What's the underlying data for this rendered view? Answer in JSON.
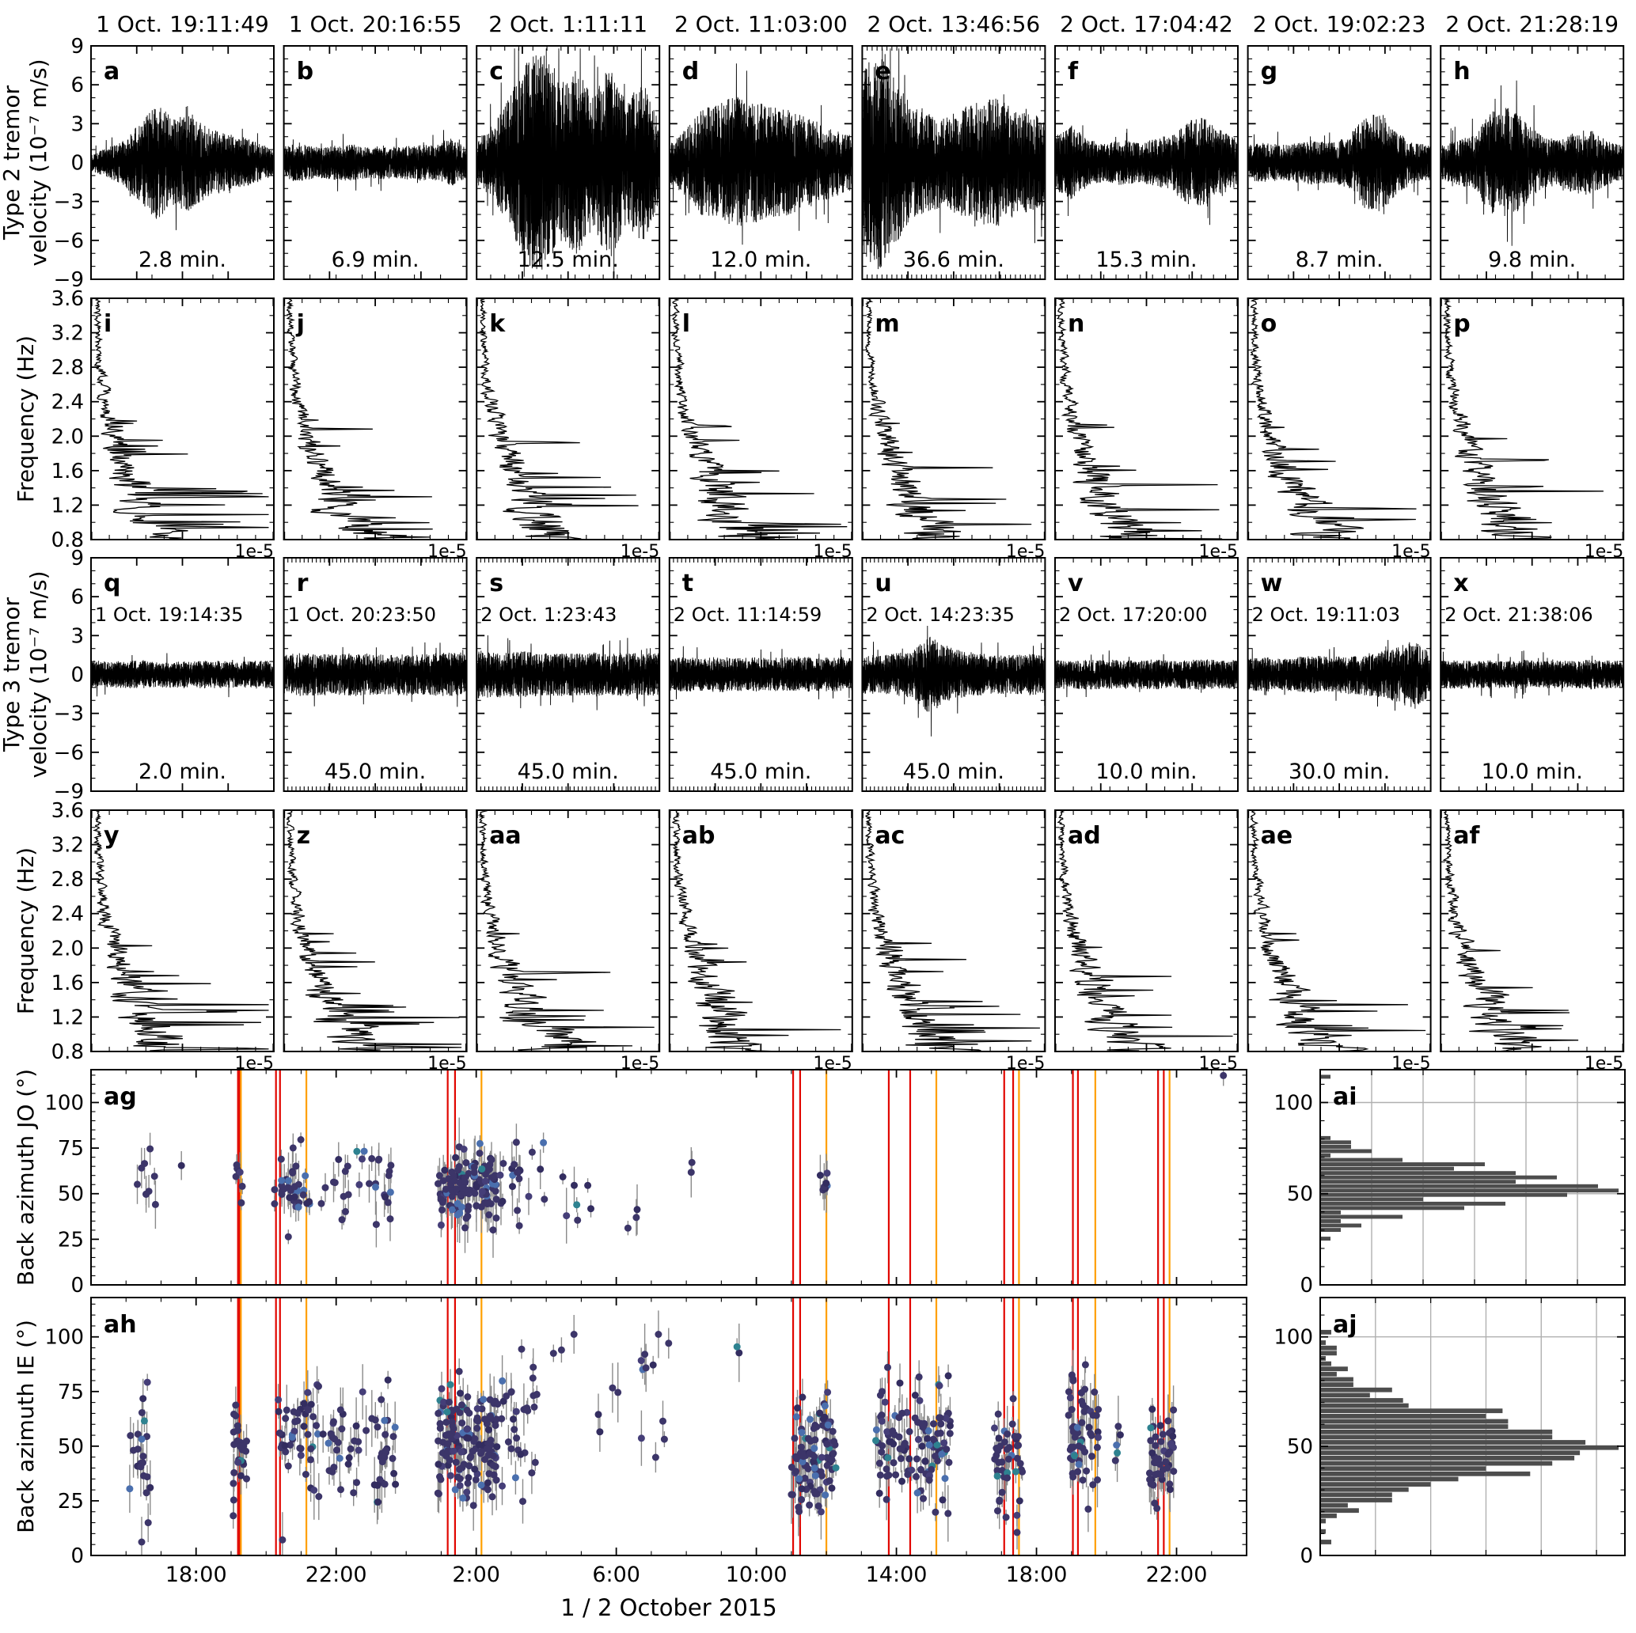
{
  "chart_data": {
    "type": "multi-panel seismic tremor figure (waveforms, spectra, back-azimuth scatter, histograms)",
    "column_titles": [
      "1 Oct. 19:11:49",
      "1 Oct. 20:16:55",
      "2 Oct. 1:11:11",
      "2 Oct. 11:03:00",
      "2 Oct. 13:46:56",
      "2 Oct. 17:04:42",
      "2 Oct. 19:02:23",
      "2 Oct. 21:28:19"
    ],
    "type2_waveforms": {
      "ylabel_lines": [
        "Type 2 tremor",
        "velocity (10⁻⁷ m/s)"
      ],
      "ylim": [
        -9,
        9
      ],
      "yticks": [
        -9,
        -6,
        -3,
        0,
        3,
        6,
        9
      ],
      "panels": [
        {
          "label": "a",
          "duration_label": "2.8 min.",
          "duration_min": 2.8,
          "peak_amplitude": 4.5,
          "seed": 11,
          "envelope": [
            0.15,
            0.25,
            0.4,
            0.7,
            1,
            0.75,
            0.85,
            0.6,
            0.5,
            0.45,
            0.35,
            0.22
          ]
        },
        {
          "label": "b",
          "duration_label": "6.9 min.",
          "duration_min": 6.9,
          "peak_amplitude": 2.4,
          "seed": 12,
          "envelope": [
            0.55,
            0.6,
            0.5,
            0.55,
            0.6,
            0.5,
            0.55,
            0.5,
            0.6,
            0.55,
            0.78,
            0.5
          ]
        },
        {
          "label": "c",
          "duration_label": "12.5 min.",
          "duration_min": 12.5,
          "peak_amplitude": 8.5,
          "seed": 13,
          "envelope": [
            0.2,
            0.35,
            0.6,
            0.95,
            1,
            0.7,
            0.85,
            0.6,
            0.9,
            0.55,
            0.75,
            0.35
          ]
        },
        {
          "label": "d",
          "duration_label": "12.0 min.",
          "duration_min": 12.0,
          "peak_amplitude": 5.2,
          "seed": 14,
          "envelope": [
            0.3,
            0.5,
            0.8,
            0.9,
            1,
            0.9,
            0.85,
            0.8,
            0.7,
            0.6,
            0.5,
            0.4
          ]
        },
        {
          "label": "e",
          "duration_label": "36.6 min.",
          "duration_min": 36.6,
          "peak_amplitude": 8.5,
          "seed": 15,
          "envelope": [
            0.85,
            1,
            0.75,
            0.5,
            0.45,
            0.4,
            0.5,
            0.55,
            0.6,
            0.5,
            0.45,
            0.4
          ]
        },
        {
          "label": "f",
          "duration_label": "15.3 min.",
          "duration_min": 15.3,
          "peak_amplitude": 3.6,
          "seed": 16,
          "envelope": [
            0.6,
            0.8,
            0.5,
            0.4,
            0.5,
            0.42,
            0.5,
            0.6,
            0.9,
            1,
            0.7,
            0.5
          ]
        },
        {
          "label": "g",
          "duration_label": "8.7 min.",
          "duration_min": 8.7,
          "peak_amplitude": 3.9,
          "seed": 17,
          "envelope": [
            0.35,
            0.4,
            0.35,
            0.4,
            0.45,
            0.4,
            0.5,
            0.9,
            1,
            0.6,
            0.4,
            0.35
          ]
        },
        {
          "label": "h",
          "duration_label": "9.8 min.",
          "duration_min": 9.8,
          "peak_amplitude": 4.3,
          "seed": 18,
          "envelope": [
            0.3,
            0.4,
            0.5,
            0.9,
            1,
            0.8,
            0.5,
            0.4,
            0.55,
            0.6,
            0.4,
            0.3
          ]
        }
      ]
    },
    "type2_spectra": {
      "ylabel": "Frequency (Hz)",
      "ylim": [
        0.8,
        3.6
      ],
      "yticks": [
        0.8,
        1.2,
        1.6,
        2.0,
        2.4,
        2.8,
        3.2,
        3.6
      ],
      "x_offset_label": "1e-5",
      "panels": [
        {
          "label": "i",
          "seed": 21
        },
        {
          "label": "j",
          "seed": 22
        },
        {
          "label": "k",
          "seed": 23
        },
        {
          "label": "l",
          "seed": 24
        },
        {
          "label": "m",
          "seed": 25
        },
        {
          "label": "n",
          "seed": 26
        },
        {
          "label": "o",
          "seed": 27
        },
        {
          "label": "p",
          "seed": 28
        }
      ]
    },
    "type3_waveforms": {
      "ylabel_lines": [
        "Type 3 tremor",
        "velocity (10⁻⁷ m/s)"
      ],
      "ylim": [
        -9,
        9
      ],
      "yticks": [
        -9,
        -6,
        -3,
        0,
        3,
        6,
        9
      ],
      "panels": [
        {
          "label": "q",
          "timestamp": "1 Oct. 19:14:35",
          "duration_label": "2.0 min.",
          "duration_min": 2.0,
          "peak_amplitude": 1.1,
          "seed": 31,
          "envelope": [
            1,
            0.9,
            0.95,
            1,
            0.9,
            0.95,
            0.9,
            1,
            0.95,
            0.9,
            1,
            0.95
          ]
        },
        {
          "label": "r",
          "timestamp": "1 Oct. 20:23:50",
          "duration_label": "45.0 min.",
          "duration_min": 45.0,
          "peak_amplitude": 1.7,
          "seed": 32,
          "envelope": [
            0.9,
            1,
            0.95,
            0.9,
            1,
            0.95,
            0.9,
            1,
            0.9,
            0.95,
            1,
            0.9
          ]
        },
        {
          "label": "s",
          "timestamp": "2 Oct. 1:23:43",
          "duration_label": "45.0 min.",
          "duration_min": 45.0,
          "peak_amplitude": 1.9,
          "seed": 33,
          "envelope": [
            1,
            0.95,
            0.9,
            0.95,
            0.85,
            0.9,
            0.85,
            0.9,
            0.85,
            0.9,
            0.85,
            0.9
          ]
        },
        {
          "label": "t",
          "timestamp": "2 Oct. 11:14:59",
          "duration_label": "45.0 min.",
          "duration_min": 45.0,
          "peak_amplitude": 1.4,
          "seed": 34,
          "envelope": [
            0.9,
            0.95,
            0.9,
            1,
            0.9,
            0.95,
            0.9,
            0.95,
            1,
            0.9,
            0.95,
            0.9
          ]
        },
        {
          "label": "u",
          "timestamp": "2 Oct. 14:23:35",
          "duration_label": "45.0 min.",
          "duration_min": 45.0,
          "peak_amplitude": 3.0,
          "seed": 35,
          "envelope": [
            0.5,
            0.5,
            0.55,
            0.6,
            1,
            0.75,
            0.6,
            0.55,
            0.5,
            0.5,
            0.55,
            0.5
          ]
        },
        {
          "label": "v",
          "timestamp": "2 Oct. 17:20:00",
          "duration_label": "10.0 min.",
          "duration_min": 10.0,
          "peak_amplitude": 1.2,
          "seed": 36,
          "envelope": [
            0.95,
            0.9,
            1,
            0.9,
            0.95,
            0.9,
            1,
            0.9,
            0.95,
            1,
            0.9,
            0.95
          ]
        },
        {
          "label": "w",
          "timestamp": "2 Oct. 19:11:03",
          "duration_label": "30.0 min.",
          "duration_min": 30.0,
          "peak_amplitude": 2.7,
          "seed": 37,
          "envelope": [
            0.45,
            0.5,
            0.45,
            0.5,
            0.55,
            0.5,
            0.55,
            0.6,
            0.65,
            0.8,
            1,
            0.6
          ]
        },
        {
          "label": "x",
          "timestamp": "2 Oct. 21:38:06",
          "duration_label": "10.0 min.",
          "duration_min": 10.0,
          "peak_amplitude": 1.15,
          "seed": 38,
          "envelope": [
            0.95,
            1,
            0.9,
            0.95,
            0.9,
            1,
            0.9,
            0.95,
            0.9,
            1,
            0.95,
            0.9
          ]
        }
      ]
    },
    "type3_spectra": {
      "ylabel": "Frequency (Hz)",
      "ylim": [
        0.8,
        3.6
      ],
      "yticks": [
        0.8,
        1.2,
        1.6,
        2.0,
        2.4,
        2.8,
        3.2,
        3.6
      ],
      "x_offset_label": "1e-5",
      "panels": [
        {
          "label": "y",
          "seed": 41
        },
        {
          "label": "z",
          "seed": 42
        },
        {
          "label": "aa",
          "seed": 43
        },
        {
          "label": "ab",
          "seed": 44
        },
        {
          "label": "ac",
          "seed": 45
        },
        {
          "label": "ad",
          "seed": 46
        },
        {
          "label": "ae",
          "seed": 47
        },
        {
          "label": "af",
          "seed": 48
        }
      ]
    },
    "time_axis": {
      "xlabel": "1 / 2 October 2015",
      "tick_labels": [
        "18:00",
        "22:00",
        "2:00",
        "6:00",
        "10:00",
        "14:00",
        "18:00",
        "22:00"
      ],
      "tick_hours": [
        18,
        22,
        26,
        30,
        34,
        38,
        42,
        46
      ],
      "range_hours": [
        15,
        48
      ]
    },
    "back_azimuth_jo": {
      "label": "ag",
      "ylabel": "Back azimuth JO (°)",
      "yticks": [
        0,
        25,
        50,
        75,
        100
      ],
      "ylim": [
        0,
        118
      ],
      "seed": 71,
      "clusters": [
        [
          16.2,
          16.9,
          9,
          55,
          10
        ],
        [
          17.5,
          17.6,
          1,
          65,
          1
        ],
        [
          19.05,
          19.35,
          7,
          55,
          7
        ],
        [
          20.2,
          21.3,
          35,
          52,
          10
        ],
        [
          21.3,
          23.6,
          30,
          55,
          11
        ],
        [
          24.9,
          25.3,
          20,
          48,
          8
        ],
        [
          25.3,
          26.6,
          110,
          53,
          9
        ],
        [
          26.6,
          27.6,
          18,
          57,
          12
        ],
        [
          27.8,
          29.3,
          10,
          60,
          18
        ],
        [
          30.2,
          30.6,
          3,
          42,
          6
        ],
        [
          32.0,
          32.2,
          2,
          65,
          3
        ],
        [
          35.75,
          36.05,
          7,
          58,
          4
        ],
        [
          47.2,
          47.4,
          1,
          113,
          2
        ]
      ]
    },
    "back_azimuth_ie": {
      "label": "ah",
      "ylabel": "Back azimuth IE (°)",
      "yticks": [
        0,
        25,
        50,
        75,
        100
      ],
      "ylim": [
        0,
        118
      ],
      "seed": 72,
      "clusters": [
        [
          16.1,
          16.7,
          22,
          45,
          20
        ],
        [
          19.05,
          19.45,
          26,
          50,
          14
        ],
        [
          20.3,
          21.6,
          45,
          52,
          13
        ],
        [
          21.6,
          23.7,
          55,
          50,
          14
        ],
        [
          24.9,
          26.6,
          150,
          52,
          13
        ],
        [
          26.6,
          27.8,
          30,
          60,
          18
        ],
        [
          28.0,
          31.5,
          18,
          80,
          20
        ],
        [
          33.4,
          33.6,
          2,
          95,
          3
        ],
        [
          35.0,
          36.3,
          95,
          48,
          13
        ],
        [
          37.4,
          39.6,
          115,
          52,
          13
        ],
        [
          40.8,
          41.6,
          45,
          45,
          12
        ],
        [
          42.9,
          43.8,
          55,
          57,
          16
        ],
        [
          44.2,
          44.5,
          5,
          50,
          8
        ],
        [
          45.2,
          46.0,
          48,
          45,
          10
        ]
      ]
    },
    "histogram_jo": {
      "label": "ai",
      "yticks": [
        0,
        50,
        100
      ]
    },
    "histogram_ie": {
      "label": "aj",
      "yticks": [
        0,
        50,
        100
      ]
    },
    "event_lines": {
      "red_hours": [
        19.197,
        19.243,
        20.282,
        20.397,
        25.186,
        25.395,
        35.05,
        35.25,
        37.782,
        38.393,
        41.078,
        41.333,
        43.04,
        43.184,
        45.472,
        45.635
      ],
      "orange_hours": [
        19.28,
        21.15,
        26.15,
        36.0,
        39.14,
        41.5,
        43.68,
        45.8
      ]
    },
    "colors": {
      "trace": "#000000",
      "red_line": "#e10600",
      "orange_line": "#ffa000",
      "histogram_bar": "#4d4d4d",
      "grid": "#b0b0b0",
      "errorbar": "#8a8a8a",
      "point_palette": [
        "#3c3569",
        "#332d60",
        "#453e78",
        "#4a6fae",
        "#2e8290"
      ]
    }
  }
}
